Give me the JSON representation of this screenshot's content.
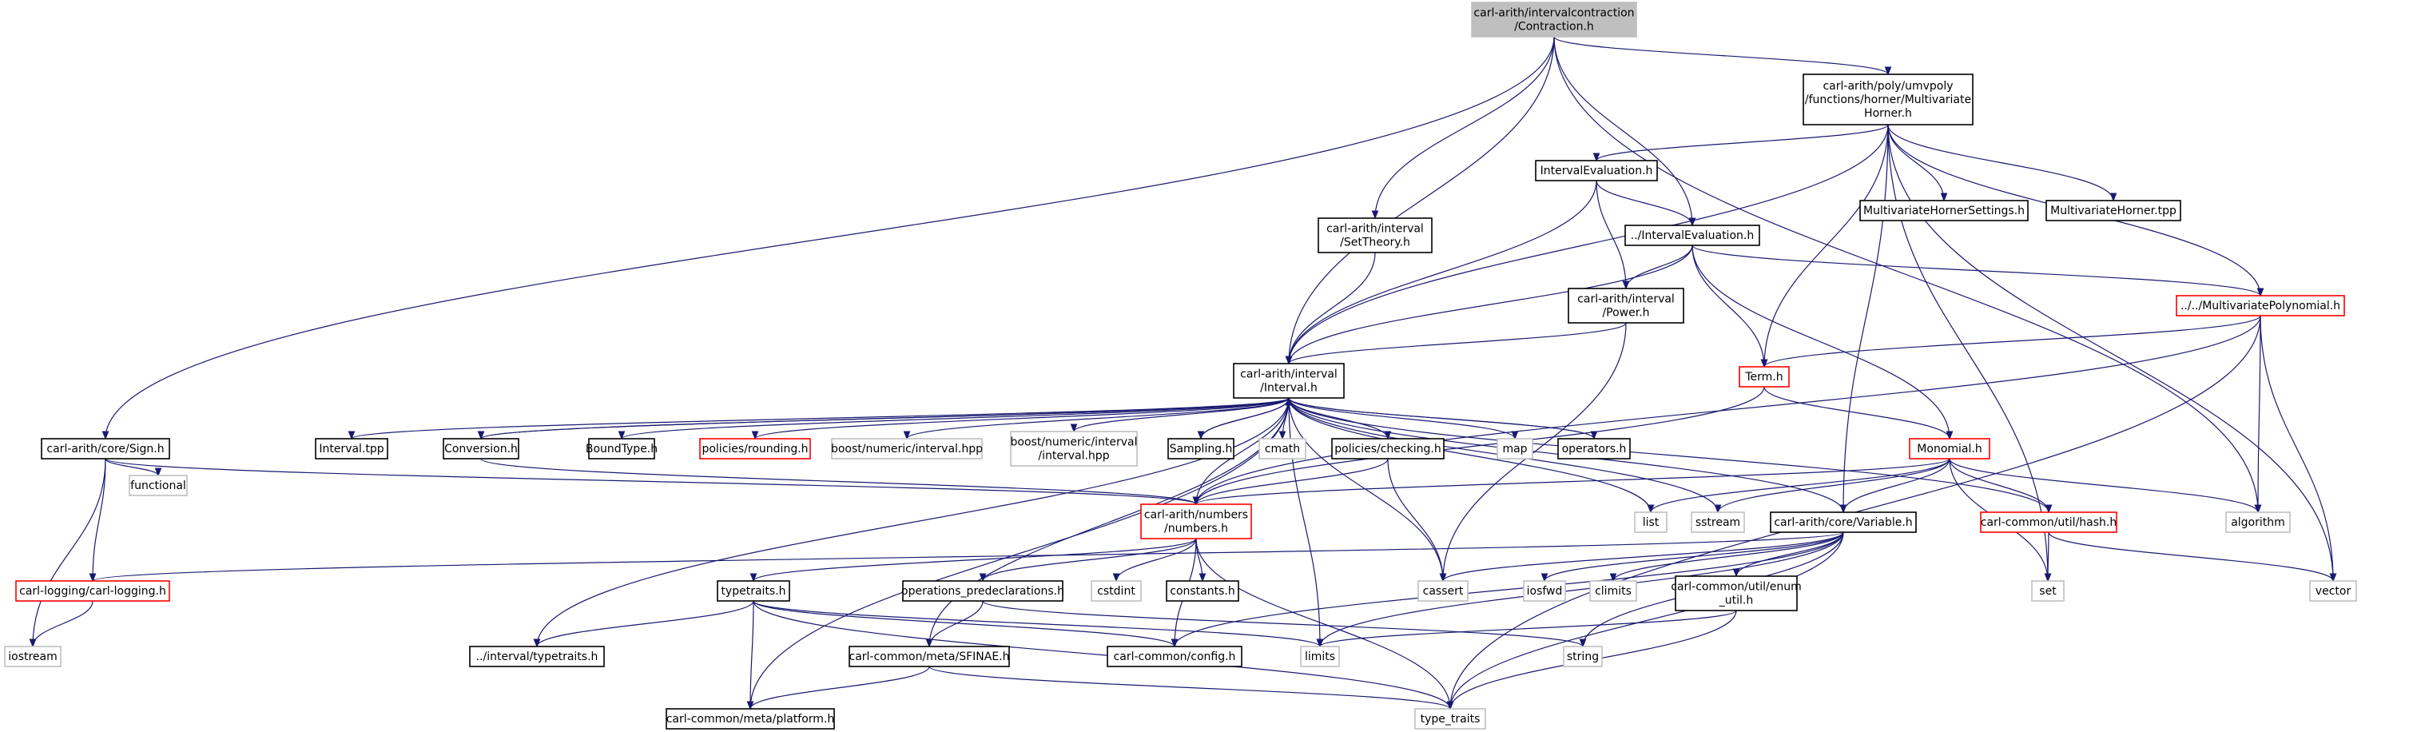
{
  "colors": {
    "edge": "#191970",
    "node_border_normal": "#000000",
    "node_border_missing": "#bfbfbf",
    "node_border_truncated": "#ff0000",
    "root_fill": "#bfbfbf",
    "node_fill": "#ffffff"
  },
  "nodes": [
    {
      "id": "root",
      "lines": [
        "carl-arith/intervalcontraction",
        "/Contraction.h"
      ],
      "style": "root"
    },
    {
      "id": "horner",
      "lines": [
        "carl-arith/poly/umvpoly",
        "/functions/horner/Multivariate",
        "Horner.h"
      ],
      "style": "normal"
    },
    {
      "id": "intervaleval1",
      "lines": [
        "IntervalEvaluation.h"
      ],
      "style": "normal"
    },
    {
      "id": "mvhornersettings",
      "lines": [
        "MultivariateHornerSettings.h"
      ],
      "style": "normal"
    },
    {
      "id": "mvhornertpp",
      "lines": [
        "MultivariateHorner.tpp"
      ],
      "style": "normal"
    },
    {
      "id": "settheory",
      "lines": [
        "carl-arith/interval",
        "/SetTheory.h"
      ],
      "style": "normal"
    },
    {
      "id": "intervaleval2",
      "lines": [
        "../IntervalEvaluation.h"
      ],
      "style": "normal"
    },
    {
      "id": "mvpoly",
      "lines": [
        "../../MultivariatePolynomial.h"
      ],
      "style": "red"
    },
    {
      "id": "power",
      "lines": [
        "carl-arith/interval",
        "/Power.h"
      ],
      "style": "normal"
    },
    {
      "id": "interval",
      "lines": [
        "carl-arith/interval",
        "/Interval.h"
      ],
      "style": "normal"
    },
    {
      "id": "term",
      "lines": [
        "Term.h"
      ],
      "style": "red"
    },
    {
      "id": "sign",
      "lines": [
        "carl-arith/core/Sign.h"
      ],
      "style": "normal"
    },
    {
      "id": "intervaltpp",
      "lines": [
        "Interval.tpp"
      ],
      "style": "normal"
    },
    {
      "id": "conversion",
      "lines": [
        "Conversion.h"
      ],
      "style": "normal"
    },
    {
      "id": "boundtype",
      "lines": [
        "BoundType.h"
      ],
      "style": "normal"
    },
    {
      "id": "rounding",
      "lines": [
        "policies/rounding.h"
      ],
      "style": "red"
    },
    {
      "id": "boostinterval",
      "lines": [
        "boost/numeric/interval.hpp"
      ],
      "style": "gray"
    },
    {
      "id": "boostinterval2",
      "lines": [
        "boost/numeric/interval",
        "/interval.hpp"
      ],
      "style": "gray"
    },
    {
      "id": "sampling",
      "lines": [
        "Sampling.h"
      ],
      "style": "normal"
    },
    {
      "id": "cmath",
      "lines": [
        "cmath"
      ],
      "style": "gray"
    },
    {
      "id": "checking",
      "lines": [
        "policies/checking.h"
      ],
      "style": "normal"
    },
    {
      "id": "map",
      "lines": [
        "map"
      ],
      "style": "gray"
    },
    {
      "id": "operators",
      "lines": [
        "operators.h"
      ],
      "style": "normal"
    },
    {
      "id": "monomial",
      "lines": [
        "Monomial.h"
      ],
      "style": "red"
    },
    {
      "id": "functional",
      "lines": [
        "functional"
      ],
      "style": "gray"
    },
    {
      "id": "numbers",
      "lines": [
        "carl-arith/numbers",
        "/numbers.h"
      ],
      "style": "red"
    },
    {
      "id": "list",
      "lines": [
        "list"
      ],
      "style": "gray"
    },
    {
      "id": "sstream",
      "lines": [
        "sstream"
      ],
      "style": "gray"
    },
    {
      "id": "variable",
      "lines": [
        "carl-arith/core/Variable.h"
      ],
      "style": "normal"
    },
    {
      "id": "hash",
      "lines": [
        "carl-common/util/hash.h"
      ],
      "style": "red"
    },
    {
      "id": "algorithm",
      "lines": [
        "algorithm"
      ],
      "style": "gray"
    },
    {
      "id": "logging",
      "lines": [
        "carl-logging/carl-logging.h"
      ],
      "style": "red"
    },
    {
      "id": "typetraits",
      "lines": [
        "typetraits.h"
      ],
      "style": "normal"
    },
    {
      "id": "opspre",
      "lines": [
        "operations_predeclarations.h"
      ],
      "style": "normal"
    },
    {
      "id": "cstdint",
      "lines": [
        "cstdint"
      ],
      "style": "gray"
    },
    {
      "id": "constants",
      "lines": [
        "constants.h"
      ],
      "style": "normal"
    },
    {
      "id": "cassert",
      "lines": [
        "cassert"
      ],
      "style": "gray"
    },
    {
      "id": "iosfwd",
      "lines": [
        "iosfwd"
      ],
      "style": "gray"
    },
    {
      "id": "climits",
      "lines": [
        "climits"
      ],
      "style": "gray"
    },
    {
      "id": "enumutil",
      "lines": [
        "carl-common/util/enum",
        "_util.h"
      ],
      "style": "normal"
    },
    {
      "id": "set",
      "lines": [
        "set"
      ],
      "style": "gray"
    },
    {
      "id": "vector",
      "lines": [
        "vector"
      ],
      "style": "gray"
    },
    {
      "id": "iostream",
      "lines": [
        "iostream"
      ],
      "style": "gray"
    },
    {
      "id": "intervaltypetraits",
      "lines": [
        "../interval/typetraits.h"
      ],
      "style": "normal"
    },
    {
      "id": "sfinae",
      "lines": [
        "carl-common/meta/SFINAE.h"
      ],
      "style": "normal"
    },
    {
      "id": "config",
      "lines": [
        "carl-common/config.h"
      ],
      "style": "normal"
    },
    {
      "id": "limits",
      "lines": [
        "limits"
      ],
      "style": "gray"
    },
    {
      "id": "string",
      "lines": [
        "string"
      ],
      "style": "gray"
    },
    {
      "id": "platform",
      "lines": [
        "carl-common/meta/platform.h"
      ],
      "style": "normal"
    },
    {
      "id": "type_traits",
      "lines": [
        "type_traits"
      ],
      "style": "gray"
    }
  ]
}
